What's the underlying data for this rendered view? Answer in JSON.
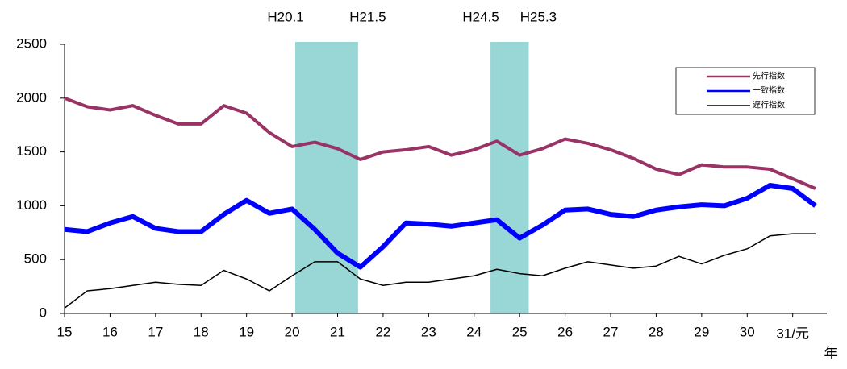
{
  "chart_data": {
    "type": "line",
    "x": [
      15,
      15.5,
      16,
      16.5,
      17,
      17.5,
      18,
      18.5,
      19,
      19.5,
      20,
      20.5,
      21,
      21.5,
      22,
      22.5,
      23,
      23.5,
      24,
      24.5,
      25,
      25.5,
      26,
      26.5,
      27,
      27.5,
      28,
      28.5,
      29,
      29.5,
      30,
      30.5,
      31,
      31.5
    ],
    "series": [
      {
        "name": "先行指数",
        "color": "#993366",
        "width": 4,
        "values": [
          2000,
          1920,
          1890,
          1930,
          1840,
          1760,
          1760,
          1930,
          1860,
          1680,
          1550,
          1590,
          1530,
          1430,
          1500,
          1520,
          1550,
          1470,
          1520,
          1600,
          1470,
          1530,
          1620,
          1580,
          1520,
          1440,
          1340,
          1290,
          1380,
          1360,
          1360,
          1340,
          1250,
          1160
        ]
      },
      {
        "name": "一致指数",
        "color": "#0000ff",
        "width": 6,
        "values": [
          780,
          760,
          840,
          900,
          790,
          760,
          760,
          920,
          1050,
          930,
          970,
          780,
          560,
          430,
          620,
          840,
          830,
          810,
          840,
          870,
          700,
          820,
          960,
          970,
          920,
          900,
          960,
          990,
          1010,
          1000,
          1070,
          1190,
          1160,
          1000
        ]
      },
      {
        "name": "遅行指数",
        "color": "#000000",
        "width": 1.5,
        "values": [
          50,
          210,
          230,
          260,
          290,
          270,
          260,
          400,
          320,
          210,
          350,
          480,
          480,
          320,
          260,
          290,
          290,
          320,
          350,
          410,
          370,
          350,
          420,
          480,
          450,
          420,
          440,
          530,
          460,
          540,
          600,
          720,
          740,
          740
        ]
      }
    ],
    "shading": [
      {
        "x": [
          20.07,
          21.45
        ],
        "labels": [
          "H20.1",
          "H21.5"
        ],
        "color": "#99d6d6"
      },
      {
        "x": [
          24.36,
          25.2
        ],
        "labels": [
          "H24.5",
          "H25.3"
        ],
        "color": "#99d6d6"
      }
    ],
    "xlabel": "年",
    "xlim": [
      15,
      31.75
    ],
    "xticks": [
      15,
      16,
      17,
      18,
      19,
      20,
      21,
      22,
      23,
      24,
      25,
      26,
      27,
      28,
      29,
      30,
      {
        "value": 31,
        "label": "31/元"
      }
    ],
    "ylim": [
      0,
      2500
    ],
    "yticks": [
      0,
      500,
      1000,
      1500,
      2000,
      2500
    ],
    "legend": "upper right"
  }
}
